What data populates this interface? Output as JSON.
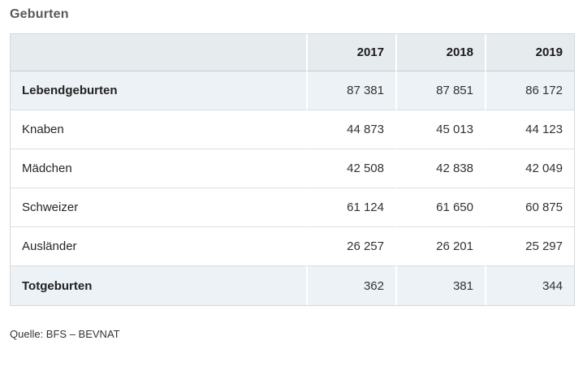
{
  "page": {
    "title": "Geburten",
    "source": "Quelle: BFS – BEVNAT"
  },
  "table": {
    "columns": [
      "2017",
      "2018",
      "2019"
    ],
    "rows": [
      {
        "label": "Lebendgeburten",
        "v0": "87 381",
        "v1": "87 851",
        "v2": "86 172",
        "highlight": true
      },
      {
        "label": "Knaben",
        "v0": "44 873",
        "v1": "45 013",
        "v2": "44 123",
        "highlight": false
      },
      {
        "label": "Mädchen",
        "v0": "42 508",
        "v1": "42 838",
        "v2": "42 049",
        "highlight": false
      },
      {
        "label": "Schweizer",
        "v0": "61 124",
        "v1": "61 650",
        "v2": "60 875",
        "highlight": false
      },
      {
        "label": "Ausländer",
        "v0": "26 257",
        "v1": "26 201",
        "v2": "25 297",
        "highlight": false
      },
      {
        "label": "Totgeburten",
        "v0": "362",
        "v1": "381",
        "v2": "344",
        "highlight": true
      }
    ]
  },
  "chart_data": {
    "type": "table",
    "title": "Geburten",
    "columns": [
      "2017",
      "2018",
      "2019"
    ],
    "rows": [
      {
        "label": "Lebendgeburten",
        "values": [
          87381,
          87851,
          86172
        ]
      },
      {
        "label": "Knaben",
        "values": [
          44873,
          45013,
          44123
        ]
      },
      {
        "label": "Mädchen",
        "values": [
          42508,
          42838,
          42049
        ]
      },
      {
        "label": "Schweizer",
        "values": [
          61124,
          61650,
          60875
        ]
      },
      {
        "label": "Ausländer",
        "values": [
          26257,
          26201,
          25297
        ]
      },
      {
        "label": "Totgeburten",
        "values": [
          362,
          381,
          344
        ]
      }
    ],
    "source": "Quelle: BFS – BEVNAT",
    "layout_hints": {
      "value_alignment": "right",
      "highlight_rows": [
        "Lebendgeburten",
        "Totgeburten"
      ]
    }
  },
  "colors": {
    "header_bg": "#e6ebee",
    "highlight_row_bg": "#edf2f6",
    "table_border": "#d5d9dc",
    "row_border": "#d9dde0",
    "title_text": "#595959",
    "body_text": "#262626"
  }
}
